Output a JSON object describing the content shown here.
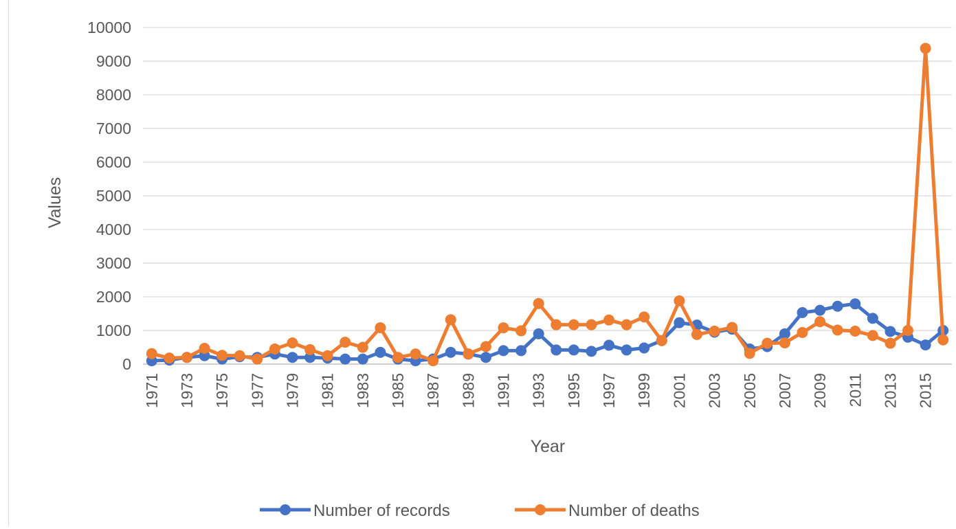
{
  "chart_data": {
    "type": "line",
    "xlabel": "Year",
    "ylabel": "Values",
    "ylim": [
      0,
      10000
    ],
    "yticks": [
      "0",
      "1000",
      "2000",
      "3000",
      "4000",
      "5000",
      "6000",
      "7000",
      "8000",
      "9000",
      "10000"
    ],
    "x": [
      1971,
      1972,
      1973,
      1974,
      1975,
      1976,
      1977,
      1978,
      1979,
      1980,
      1981,
      1982,
      1983,
      1984,
      1985,
      1986,
      1987,
      1988,
      1989,
      1990,
      1991,
      1992,
      1993,
      1994,
      1995,
      1996,
      1997,
      1998,
      1999,
      2000,
      2001,
      2002,
      2003,
      2004,
      2005,
      2006,
      2007,
      2008,
      2009,
      2010,
      2011,
      2012,
      2013,
      2014,
      2015,
      2016
    ],
    "xtick_labels": [
      "1971",
      "1973",
      "1975",
      "1977",
      "1979",
      "1981",
      "1983",
      "1985",
      "1987",
      "1989",
      "1991",
      "1993",
      "1995",
      "1997",
      "1999",
      "2001",
      "2003",
      "2005",
      "2007",
      "2009",
      "2011",
      "2013",
      "2015"
    ],
    "grid": true,
    "legend": "bottom",
    "series": [
      {
        "name": "Number of records",
        "color": "#4472c4",
        "values": [
          100,
          120,
          200,
          250,
          150,
          220,
          200,
          300,
          200,
          200,
          180,
          150,
          150,
          350,
          150,
          100,
          150,
          350,
          300,
          200,
          400,
          400,
          900,
          420,
          420,
          380,
          560,
          420,
          480,
          700,
          1230,
          1160,
          950,
          1040,
          450,
          520,
          900,
          1530,
          1600,
          1720,
          1790,
          1360,
          970,
          800,
          570,
          1000
        ]
      },
      {
        "name": "Number of deaths",
        "color": "#ed7d31",
        "values": [
          310,
          180,
          200,
          470,
          260,
          250,
          150,
          450,
          630,
          430,
          250,
          650,
          500,
          1080,
          200,
          300,
          100,
          1320,
          300,
          520,
          1080,
          990,
          1800,
          1170,
          1170,
          1170,
          1310,
          1170,
          1400,
          700,
          1880,
          880,
          980,
          1090,
          320,
          620,
          630,
          940,
          1260,
          1010,
          980,
          850,
          620,
          1000,
          9380,
          720
        ]
      }
    ]
  }
}
